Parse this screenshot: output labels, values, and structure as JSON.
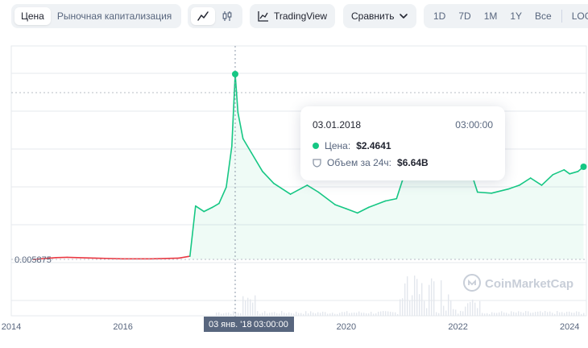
{
  "toolbar": {
    "tabs": [
      {
        "label": "Цена",
        "active": true
      },
      {
        "label": "Рыночная капитализация",
        "active": false
      }
    ],
    "chart_types": [
      {
        "icon": "line-chart-icon",
        "active": true
      },
      {
        "icon": "candlestick-icon",
        "active": false
      }
    ],
    "tradingview_label": "TradingView",
    "compare_label": "Сравнить",
    "ranges": [
      "1D",
      "7D",
      "1M",
      "1Y",
      "Все"
    ],
    "log_label": "LOG"
  },
  "watermark": "CoinMarketCap",
  "crosshair": {
    "date_label": "03 янв. '18",
    "time_label": "03:00:00"
  },
  "tooltip": {
    "date": "03.01.2018",
    "time": "03:00:00",
    "price_label": "Цена:",
    "price_value": "$2.4641",
    "volume_label": "Объем за 24ч:",
    "volume_value": "$6.64B"
  },
  "colors": {
    "up": "#16c784",
    "down": "#ea3943",
    "grid": "#e6e9ee"
  },
  "chart_data": {
    "type": "line",
    "x_ticks": [
      "2014",
      "2016",
      "2020",
      "2022",
      "2024"
    ],
    "y_reference_label": "0.005875",
    "y_reference_value": 0.005875,
    "grid": true,
    "series": [
      {
        "values": [
          [
            2014.4,
            0.0058
          ],
          [
            2014.8,
            0.0061
          ],
          [
            2015.0,
            0.0062
          ],
          [
            2015.5,
            0.006
          ],
          [
            2016.0,
            0.0059
          ],
          [
            2016.5,
            0.0059
          ],
          [
            2017.0,
            0.006
          ],
          [
            2017.2,
            0.0066
          ],
          [
            2017.3,
            0.21
          ],
          [
            2017.45,
            0.17
          ],
          [
            2017.6,
            0.2
          ],
          [
            2017.72,
            0.23
          ],
          [
            2017.85,
            0.38
          ],
          [
            2017.95,
            0.92
          ],
          [
            2018.01,
            2.4641
          ],
          [
            2018.06,
            1.55
          ],
          [
            2018.15,
            1.05
          ],
          [
            2018.3,
            0.82
          ],
          [
            2018.5,
            0.56
          ],
          [
            2018.7,
            0.42
          ],
          [
            2019.0,
            0.31
          ],
          [
            2019.3,
            0.4
          ],
          [
            2019.5,
            0.33
          ],
          [
            2019.8,
            0.22
          ],
          [
            2020.0,
            0.19
          ],
          [
            2020.2,
            0.16
          ],
          [
            2020.4,
            0.2
          ],
          [
            2020.7,
            0.25
          ],
          [
            2020.9,
            0.27
          ],
          [
            2021.0,
            0.44
          ],
          [
            2021.15,
            0.75
          ],
          [
            2021.3,
            1.05
          ],
          [
            2021.45,
            0.9
          ],
          [
            2021.6,
            0.78
          ],
          [
            2021.75,
            1.0
          ],
          [
            2021.9,
            0.85
          ],
          [
            2022.0,
            0.74
          ],
          [
            2022.2,
            0.63
          ],
          [
            2022.35,
            0.33
          ],
          [
            2022.6,
            0.32
          ],
          [
            2022.9,
            0.36
          ],
          [
            2023.1,
            0.4
          ],
          [
            2023.3,
            0.48
          ],
          [
            2023.5,
            0.4
          ],
          [
            2023.7,
            0.52
          ],
          [
            2023.9,
            0.58
          ],
          [
            2024.0,
            0.53
          ],
          [
            2024.15,
            0.56
          ],
          [
            2024.25,
            0.62
          ]
        ]
      }
    ]
  }
}
